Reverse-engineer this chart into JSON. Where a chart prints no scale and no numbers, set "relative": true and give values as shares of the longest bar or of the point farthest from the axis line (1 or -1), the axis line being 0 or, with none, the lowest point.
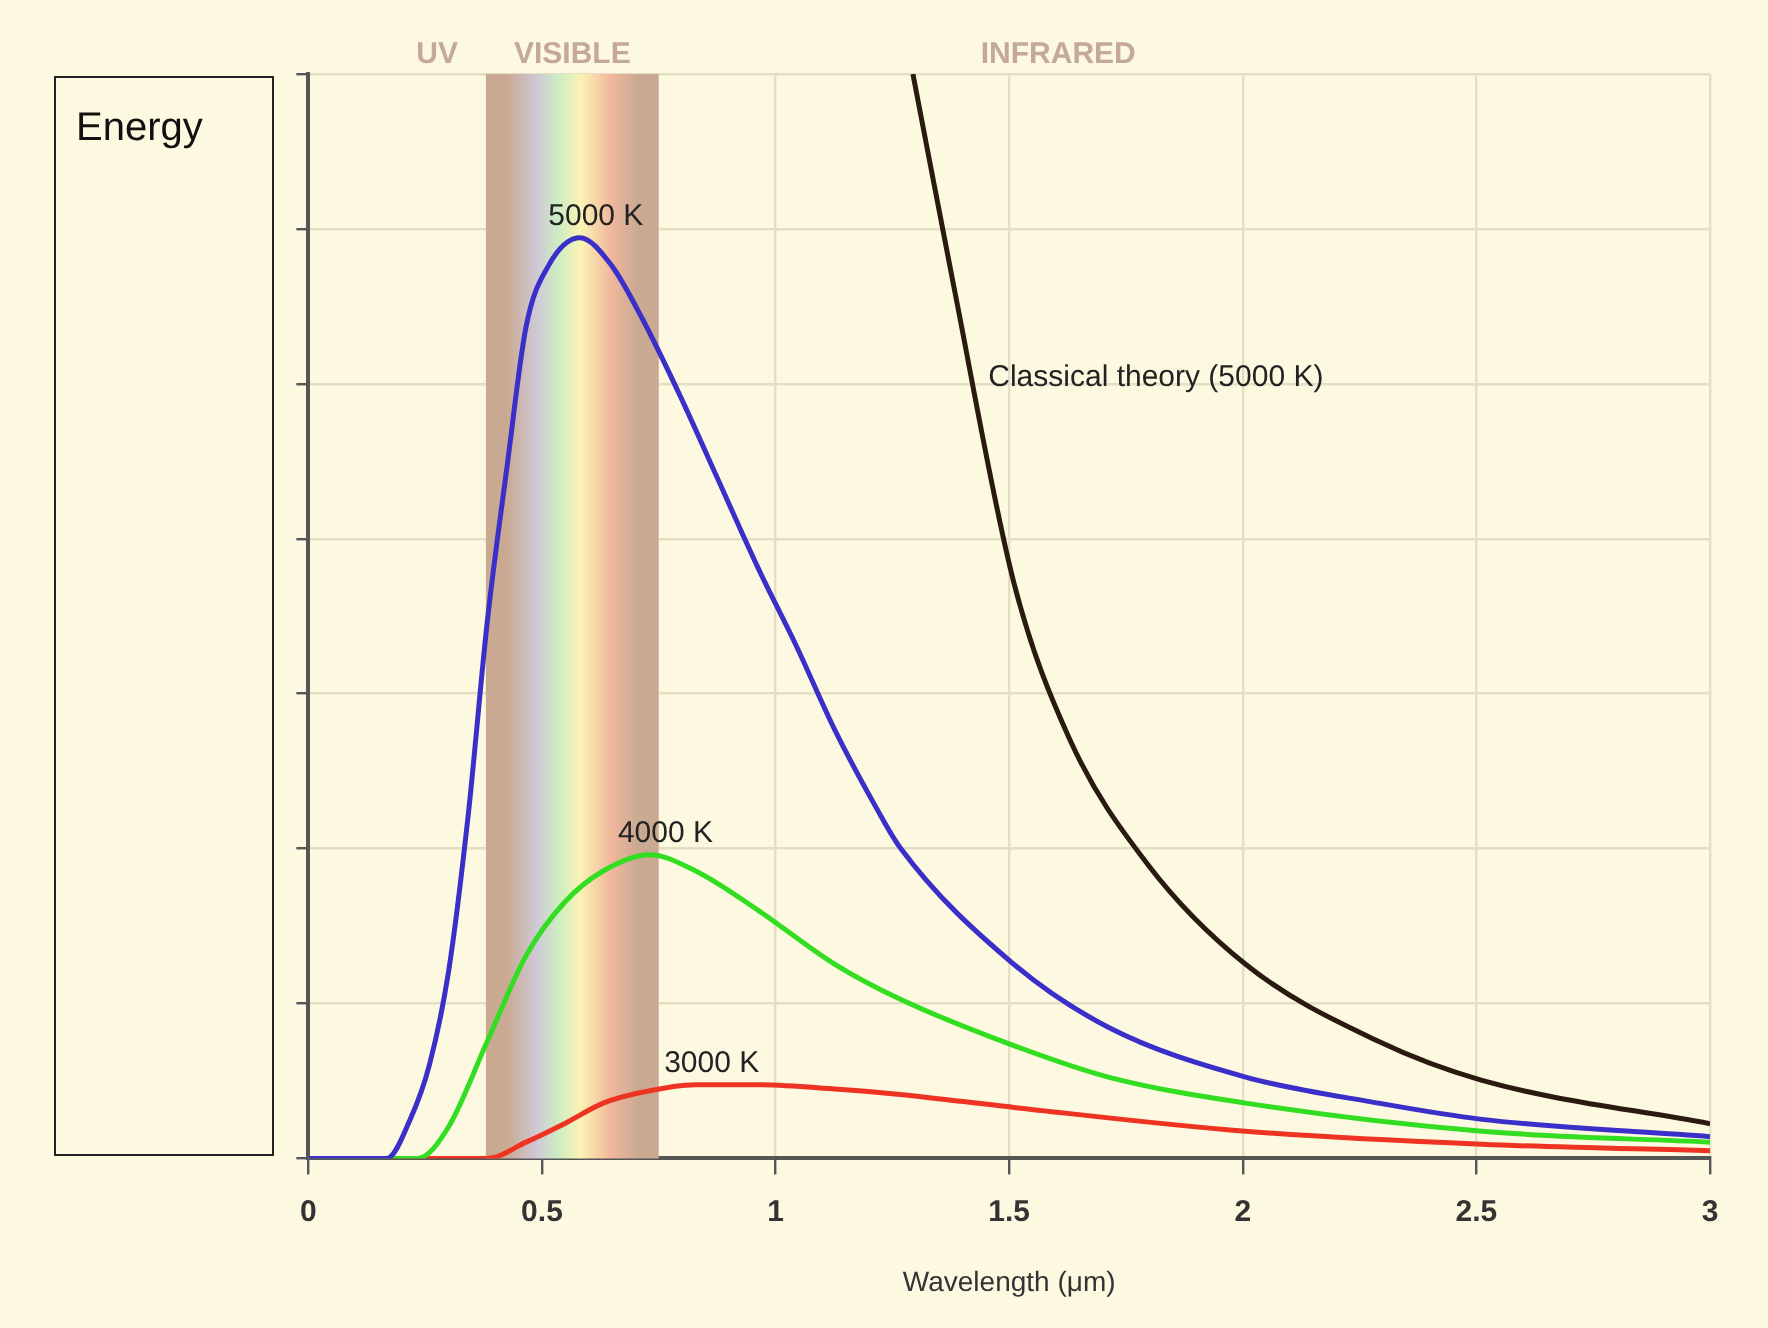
{
  "chart_data": {
    "type": "line",
    "relative": true,
    "xlabel": "Wavelength (μm)",
    "ylabel": "Energy",
    "xlim": [
      0,
      3
    ],
    "xticks": [
      0,
      0.5,
      1,
      1.5,
      2,
      2.5,
      3
    ],
    "grid": true,
    "legend": false,
    "marker": "none",
    "line_style": "solid",
    "series": [
      {
        "name": "5000 K",
        "color": "#3b2fc9",
        "x": [
          0,
          0.168,
          0.218,
          0.259,
          0.3,
          0.342,
          0.383,
          0.425,
          0.466,
          0.515,
          0.581,
          0.648,
          0.714,
          0.796,
          0.879,
          0.962,
          1.044,
          1.127,
          1.216,
          1.266,
          1.51,
          1.712,
          2.006,
          2.29,
          2.512,
          3
        ],
        "values": [
          0,
          0,
          0.036,
          0.086,
          0.172,
          0.316,
          0.495,
          0.637,
          0.767,
          0.824,
          0.849,
          0.824,
          0.775,
          0.703,
          0.624,
          0.545,
          0.473,
          0.395,
          0.323,
          0.287,
          0.179,
          0.121,
          0.075,
          0.051,
          0.036,
          0.02
        ]
      },
      {
        "name": "4000 K",
        "color": "#33dd22",
        "x": [
          0,
          0.234,
          0.3,
          0.383,
          0.466,
          0.548,
          0.631,
          0.73,
          0.829,
          0.962,
          1.127,
          1.266,
          1.51,
          1.712,
          2.006,
          2.512,
          3
        ],
        "values": [
          0,
          0,
          0.029,
          0.108,
          0.187,
          0.236,
          0.265,
          0.28,
          0.265,
          0.229,
          0.179,
          0.147,
          0.104,
          0.075,
          0.051,
          0.025,
          0.015
        ]
      },
      {
        "name": "3000 K",
        "color": "#ee3322",
        "x": [
          0,
          0.383,
          0.466,
          0.548,
          0.631,
          0.714,
          0.829,
          0.962,
          1.127,
          1.266,
          1.51,
          2.006,
          2.512,
          3
        ],
        "values": [
          0,
          0,
          0.015,
          0.032,
          0.051,
          0.061,
          0.068,
          0.068,
          0.064,
          0.059,
          0.047,
          0.025,
          0.013,
          0.007
        ]
      },
      {
        "name": "Classical theory (5000 K)",
        "color": "#2a1a10",
        "x": [
          1.294,
          1.382,
          1.51,
          1.629,
          1.795,
          2.006,
          2.29,
          2.512,
          3
        ],
        "values": [
          1,
          0.803,
          0.531,
          0.387,
          0.272,
          0.179,
          0.108,
          0.072,
          0.032
        ]
      }
    ],
    "bands": [
      {
        "axis": "x",
        "from": 0.38,
        "to": 0.75,
        "label": "VISIBLE",
        "color": "#c9a992"
      }
    ],
    "annotations": [
      "UV",
      "INFRARED"
    ]
  }
}
